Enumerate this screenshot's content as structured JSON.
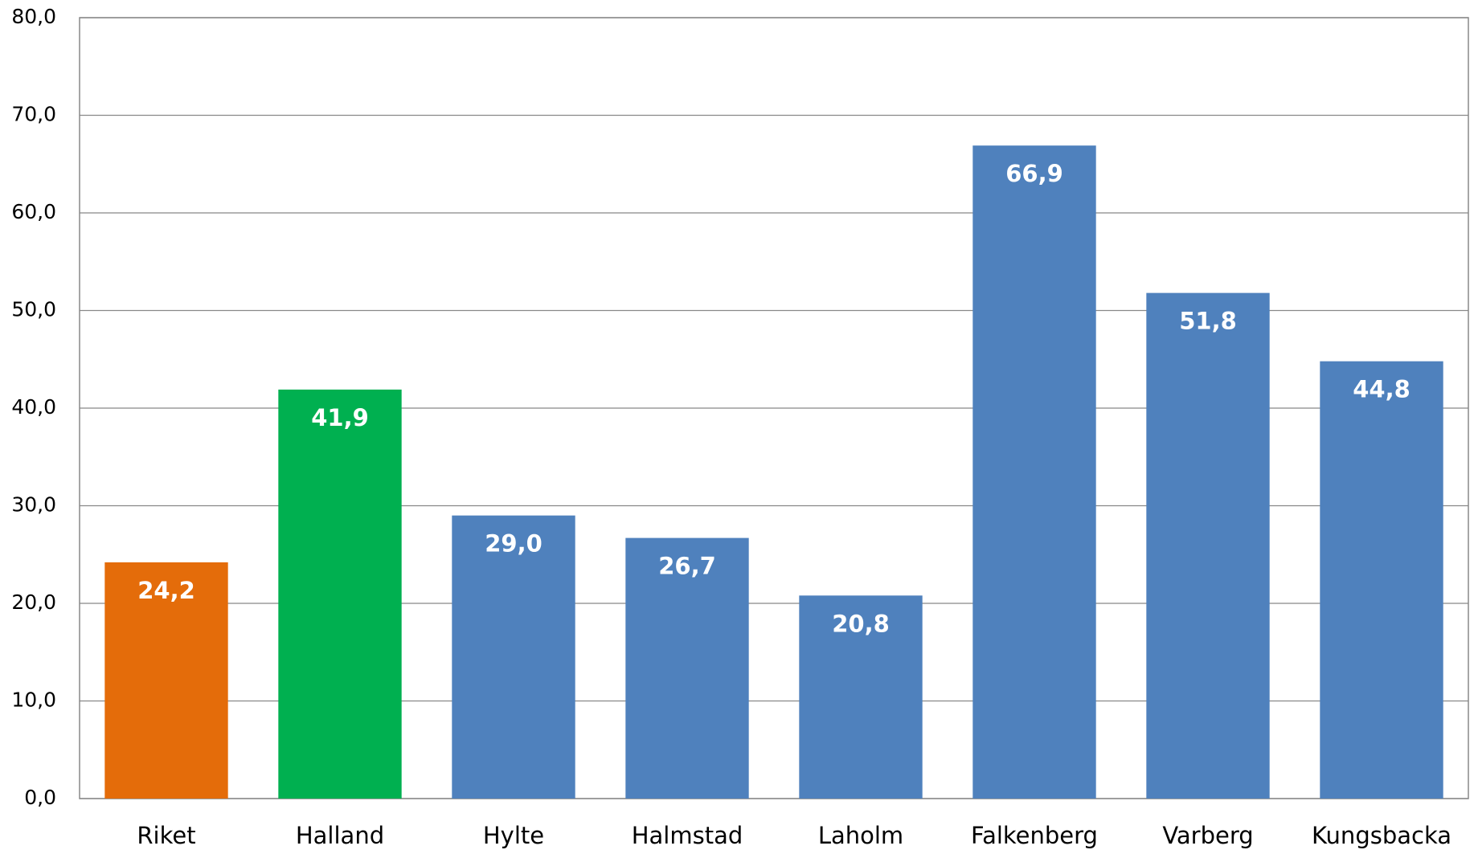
{
  "chart_data": {
    "type": "bar",
    "categories": [
      "Riket",
      "Halland",
      "Hylte",
      "Halmstad",
      "Laholm",
      "Falkenberg",
      "Varberg",
      "Kungsbacka"
    ],
    "values": [
      24.2,
      41.9,
      29.0,
      26.7,
      20.8,
      66.9,
      51.8,
      44.8
    ],
    "value_labels": [
      "24,2",
      "41,9",
      "29,0",
      "26,7",
      "20,8",
      "66,9",
      "51,8",
      "44,8"
    ],
    "colors": [
      "#e46c0a",
      "#00b050",
      "#4f81bd",
      "#4f81bd",
      "#4f81bd",
      "#4f81bd",
      "#4f81bd",
      "#4f81bd"
    ],
    "ylim": [
      0,
      80
    ],
    "yticks": [
      {
        "value": 0,
        "label": "0,0"
      },
      {
        "value": 10,
        "label": "10,0"
      },
      {
        "value": 20,
        "label": "20,0"
      },
      {
        "value": 30,
        "label": "30,0"
      },
      {
        "value": 40,
        "label": "40,0"
      },
      {
        "value": 50,
        "label": "50,0"
      },
      {
        "value": 60,
        "label": "60,0"
      },
      {
        "value": 70,
        "label": "70,0"
      },
      {
        "value": 80,
        "label": "80,0"
      }
    ],
    "grid": true
  }
}
